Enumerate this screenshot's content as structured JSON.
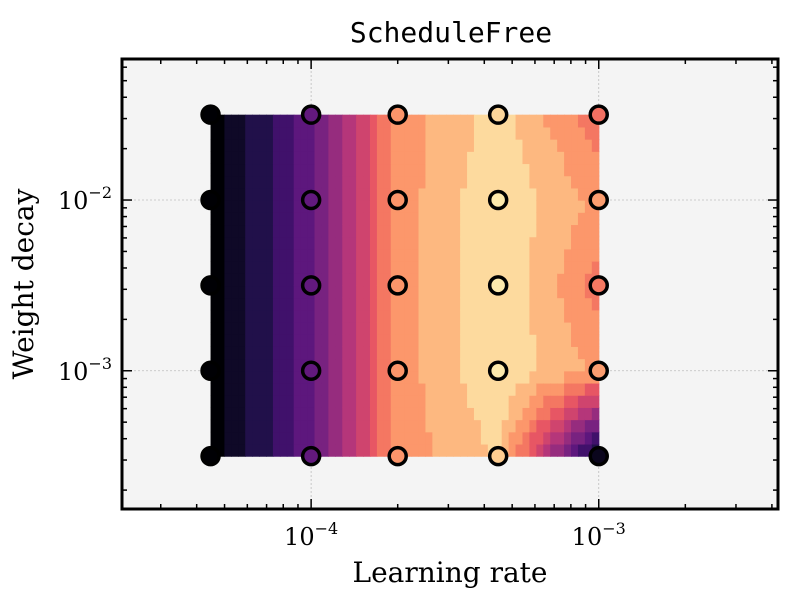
{
  "chart_data": {
    "type": "heatmap",
    "title": "ScheduleFree",
    "xlabel": "Learning rate",
    "ylabel": "Weight decay",
    "x_scale": "log",
    "y_scale": "log",
    "xlim": [
      2.2e-05,
      0.0042
    ],
    "ylim": [
      0.000155,
      0.067
    ],
    "grid": true,
    "colormap": "magma",
    "x_ticks": [
      {
        "value": 0.0001,
        "base": "10",
        "exp": "−4"
      },
      {
        "value": 0.001,
        "base": "10",
        "exp": "−3"
      }
    ],
    "y_ticks": [
      {
        "value": 0.01,
        "base": "10",
        "exp": "−2"
      },
      {
        "value": 0.001,
        "base": "10",
        "exp": "−3"
      }
    ],
    "x": [
      4.47e-05,
      0.0001,
      0.0002,
      0.000447,
      0.001
    ],
    "y": [
      0.03162,
      0.01,
      0.003162,
      0.001,
      0.0003162
    ],
    "z": [
      [
        0.0,
        0.3,
        0.78,
        0.92,
        0.7
      ],
      [
        0.0,
        0.3,
        0.78,
        0.96,
        0.8
      ],
      [
        0.0,
        0.3,
        0.78,
        0.96,
        0.72
      ],
      [
        0.0,
        0.3,
        0.78,
        0.96,
        0.8
      ],
      [
        0.0,
        0.3,
        0.78,
        0.9,
        0.05
      ]
    ]
  }
}
